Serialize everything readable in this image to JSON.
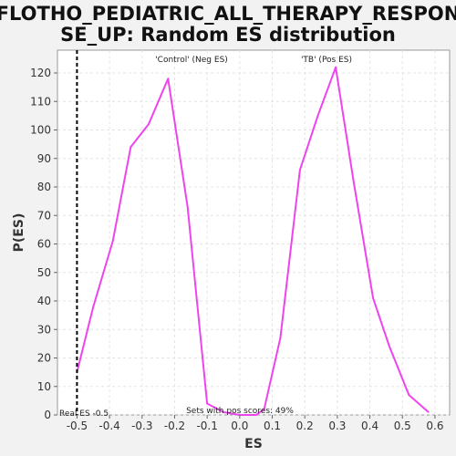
{
  "chart_data": {
    "type": "line",
    "title_line1": "FLOTHO_PEDIATRIC_ALL_THERAPY_RESPON",
    "title_line2": "SE_UP: Random ES distribution",
    "xlabel": "ES",
    "ylabel": "P(ES)",
    "xlim": [
      -0.56,
      0.645
    ],
    "ylim": [
      0,
      128
    ],
    "x_ticks": [
      -0.5,
      -0.4,
      -0.3,
      -0.2,
      -0.1,
      0.0,
      0.1,
      0.2,
      0.3,
      0.4,
      0.5,
      0.6
    ],
    "x_tick_labels": [
      "-0.5",
      "-0.4",
      "-0.3",
      "-0.2",
      "-0.1",
      "0.0",
      "0.1",
      "0.2",
      "0.3",
      "0.4",
      "0.5",
      "0.6"
    ],
    "y_ticks": [
      0,
      10,
      20,
      30,
      40,
      50,
      60,
      70,
      80,
      90,
      100,
      110,
      120
    ],
    "grid": true,
    "line_color": "#ee44ee",
    "series": [
      {
        "x": [
          -0.5,
          -0.45,
          -0.39,
          -0.335,
          -0.28,
          -0.22,
          -0.16,
          -0.1,
          -0.05,
          0.0,
          0.05,
          0.075,
          0.125,
          0.185,
          0.24,
          0.295,
          0.35,
          0.41,
          0.46,
          0.52,
          0.58
        ],
        "y": [
          15,
          38,
          61,
          94,
          102,
          118,
          73,
          4,
          1,
          0,
          0,
          2,
          27,
          86,
          105,
          122,
          82,
          41,
          24,
          7,
          1
        ]
      }
    ],
    "real_es": {
      "value": -0.5,
      "label": "Real ES -0.5",
      "color": "#000000"
    },
    "annotations": {
      "neg_label": "'Control' (Neg ES)",
      "neg_color": "#2222cc",
      "pos_label": "'TB' (Pos ES)",
      "pos_color": "#dd2222",
      "sets_label": "Sets with pos scores: 49%"
    }
  }
}
